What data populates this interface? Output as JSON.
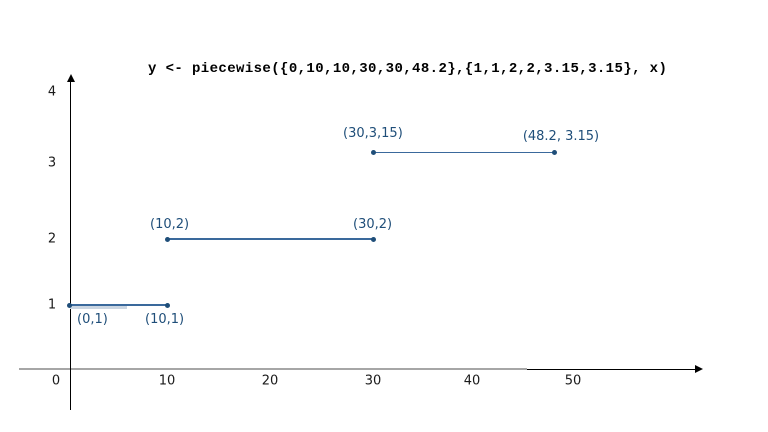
{
  "page": {
    "background": "#FFFFFF"
  },
  "chart_data": {
    "type": "line",
    "title": "y <- piecewise({0,10,10,30,30,48.2},{1,1,2,2,3.15,3.15}, x)",
    "xlabel": "",
    "ylabel": "",
    "xlim": [
      0,
      60
    ],
    "ylim": [
      0,
      4
    ],
    "grid": false,
    "legend": "none",
    "x_ticks": [
      0,
      10,
      20,
      30,
      40,
      50
    ],
    "y_ticks": [
      1,
      2,
      3,
      4
    ],
    "colors": {
      "point": "#1F4E79",
      "line": "#3A699C",
      "label": "#1F4E79",
      "axis_black": "#000000",
      "axis_gray": "#A6A6A6",
      "tick_text": "#1A1A1A",
      "highlight": "#CBD6E2"
    },
    "segments": [
      {
        "points": [
          {
            "x": 0,
            "y": 1,
            "label": "(0,1)",
            "label_offset": {
              "dx": 8,
              "dy": 7
            }
          },
          {
            "x": 10,
            "y": 1,
            "label": "(10,1)",
            "label_offset": {
              "dx": -22,
              "dy": 7
            }
          }
        ]
      },
      {
        "points": [
          {
            "x": 10,
            "y": 2,
            "label": "(10,2)",
            "label_offset": {
              "dx": -17,
              "dy": -22
            }
          },
          {
            "x": 30,
            "y": 2,
            "label": "(30,2)",
            "label_offset": {
              "dx": -20,
              "dy": -22
            }
          }
        ]
      },
      {
        "points": [
          {
            "x": 30,
            "y": 3.15,
            "label": "(30,3,15)",
            "label_offset": {
              "dx": -30,
              "dy": -26
            }
          },
          {
            "x": 48.2,
            "y": 3.15,
            "label": "(48.2, 3.15)",
            "label_offset": {
              "dx": -32,
              "dy": -23
            }
          }
        ]
      }
    ]
  }
}
